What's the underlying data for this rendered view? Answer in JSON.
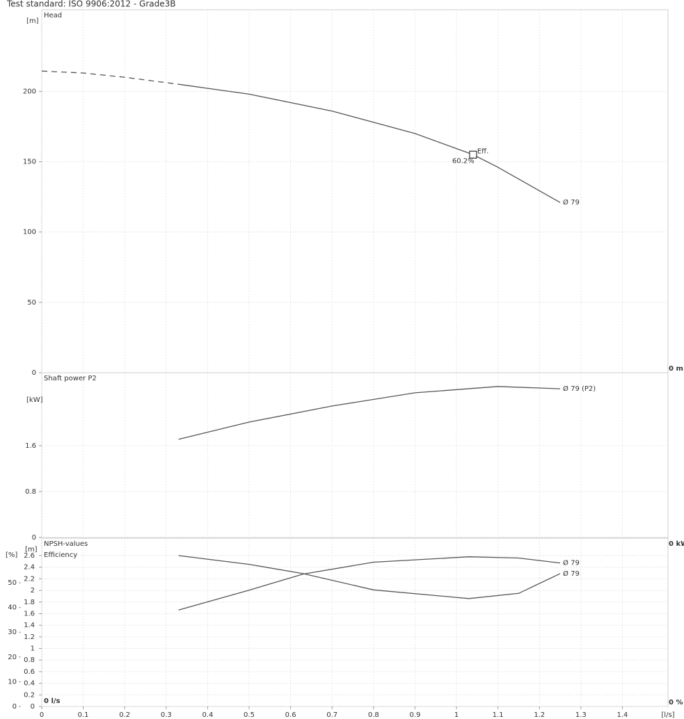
{
  "header": {
    "title": "Test standard: ISO 9906:2012 - Grade3B"
  },
  "chart_data": [
    {
      "type": "line",
      "title": "Head",
      "y_unit": "[m]",
      "zero_label": "0 m",
      "x": [
        0,
        0.1,
        0.2,
        0.33,
        0.5,
        0.7,
        0.9,
        1.04,
        1.1,
        1.25
      ],
      "xlim": [
        0,
        1.51
      ],
      "ylim": [
        0,
        258
      ],
      "yticks": [
        0,
        50,
        100,
        150,
        200
      ],
      "grid": true,
      "series": [
        {
          "color": "#555555",
          "line_style": "dashed",
          "values": [
            214.4,
            213,
            210,
            205,
            null,
            null,
            null,
            null,
            null,
            null
          ]
        },
        {
          "name": "Ø 79",
          "color": "#555555",
          "line_style": "solid",
          "values": [
            null,
            null,
            null,
            205,
            198,
            186,
            170,
            155,
            146,
            121
          ]
        }
      ],
      "efficiency_point": {
        "x": 1.04,
        "y": 155,
        "label": "Eff.",
        "efficiency_label": "60.2%"
      }
    },
    {
      "type": "line",
      "title": "Shaft power P2",
      "y_unit": "[kW]",
      "zero_label": "0 kW",
      "x": [
        0.33,
        0.5,
        0.7,
        0.9,
        1.1,
        1.25
      ],
      "xlim": [
        0,
        1.51
      ],
      "ylim": [
        0,
        2.87
      ],
      "yticks": [
        0,
        0.8,
        1.6
      ],
      "grid": true,
      "series": [
        {
          "name": "Ø 79 (P2)",
          "color": "#555555",
          "line_style": "solid",
          "values": [
            1.71,
            2.01,
            2.29,
            2.52,
            2.63,
            2.59
          ]
        }
      ]
    },
    {
      "type": "line",
      "title": "NPSH-values",
      "y2_title": "Efficiency",
      "y_unit": "[m]",
      "y2_unit": "[%]",
      "zero_label": "0 %",
      "x_zero_label": "0 l/s",
      "x_unit": "[l/s]",
      "x": [
        0.33,
        0.5,
        0.63,
        0.8,
        1.03,
        1.15,
        1.25
      ],
      "xlim": [
        0,
        1.51
      ],
      "xticks": [
        0,
        0.1,
        0.2,
        0.3,
        0.4,
        0.5,
        0.6,
        0.7,
        0.8,
        0.9,
        1,
        1.1,
        1.2,
        1.3,
        1.4
      ],
      "ylim": [
        0,
        2.9
      ],
      "yticks": [
        0,
        0.2,
        0.4,
        0.6,
        0.8,
        1,
        1.2,
        1.4,
        1.6,
        1.8,
        2,
        2.2,
        2.4,
        2.6
      ],
      "y2lim": [
        0,
        68
      ],
      "y2ticks": [
        0,
        10,
        20,
        30,
        40,
        50
      ],
      "grid": true,
      "series": [
        {
          "name": "Ø 79",
          "color": "#555555",
          "line_style": "solid",
          "values": [
            2.6,
            2.45,
            2.29,
            2.01,
            1.86,
            1.95,
            2.29
          ]
        },
        {
          "name": "Ø 79",
          "color": "#555555",
          "line_style": "solid",
          "axis": "y2",
          "values": [
            39,
            47,
            53.5,
            58.3,
            60.5,
            60,
            58
          ]
        }
      ]
    }
  ]
}
